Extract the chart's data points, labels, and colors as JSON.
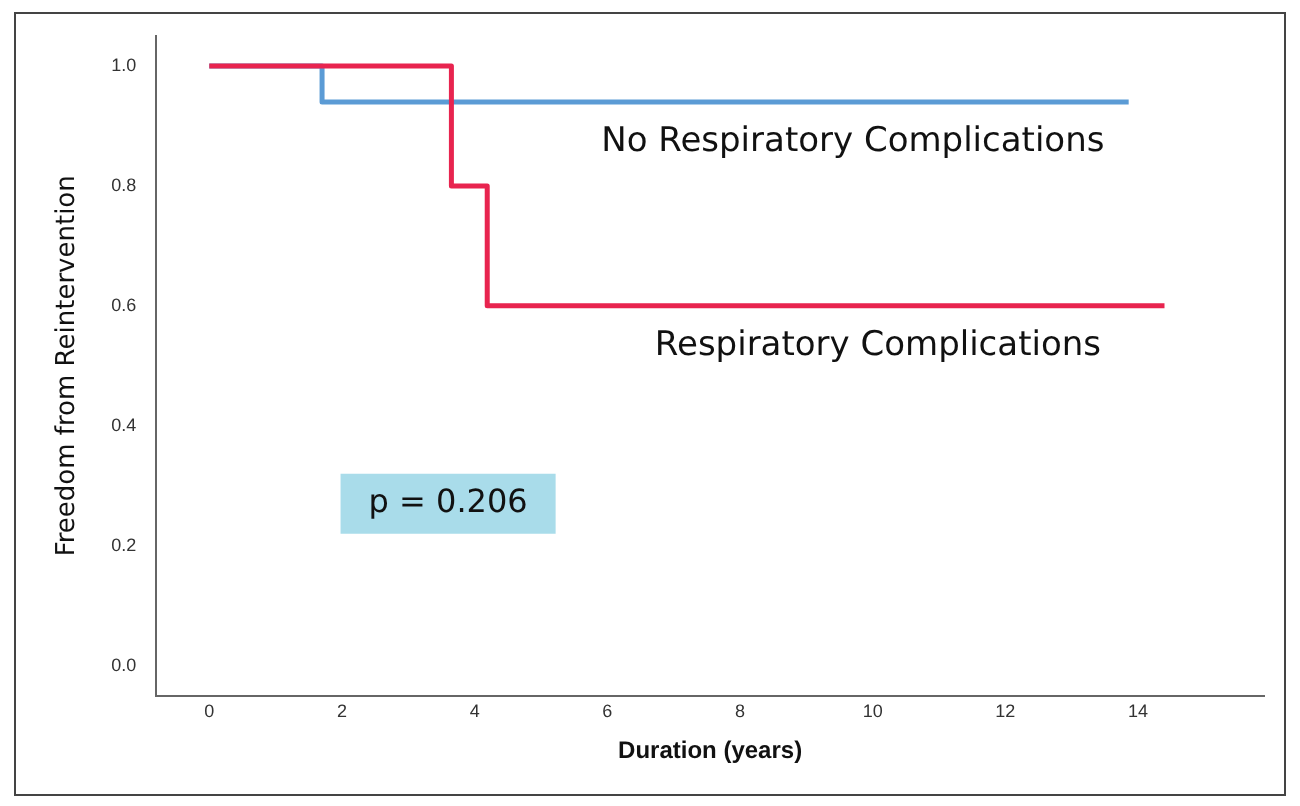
{
  "chart_data": {
    "type": "step",
    "xlabel": "Duration (years)",
    "ylabel": "Freedom from Reintervention",
    "xlim": [
      -0.8,
      15.9
    ],
    "xticks": [
      0,
      2,
      4,
      6,
      8,
      10,
      12,
      14
    ],
    "ylim": [
      -0.05,
      1.05
    ],
    "yticks": [
      {
        "value": 0,
        "label": "0.0"
      },
      {
        "value": 0.2,
        "label": "0.2"
      },
      {
        "value": 0.4,
        "label": "0.4"
      },
      {
        "value": 0.6,
        "label": "0.6"
      },
      {
        "value": 0.8,
        "label": "0.8"
      },
      {
        "value": 1,
        "label": "1.0"
      }
    ],
    "grid": false,
    "legend": false,
    "marker": "none",
    "line_style": "solid",
    "series": [
      {
        "name": "No Respiratory Complications",
        "color": "#5b9bd5",
        "x": [
          0,
          1.7,
          13.86
        ],
        "values": [
          1,
          0.94,
          0.94
        ]
      },
      {
        "name": "Respiratory Complications",
        "color": "#e8244f",
        "x": [
          0,
          3.65,
          4.19,
          14.4
        ],
        "values": [
          1,
          0.8,
          0.6,
          0.6
        ]
      }
    ],
    "annotations": [
      "p = 0.206"
    ]
  }
}
